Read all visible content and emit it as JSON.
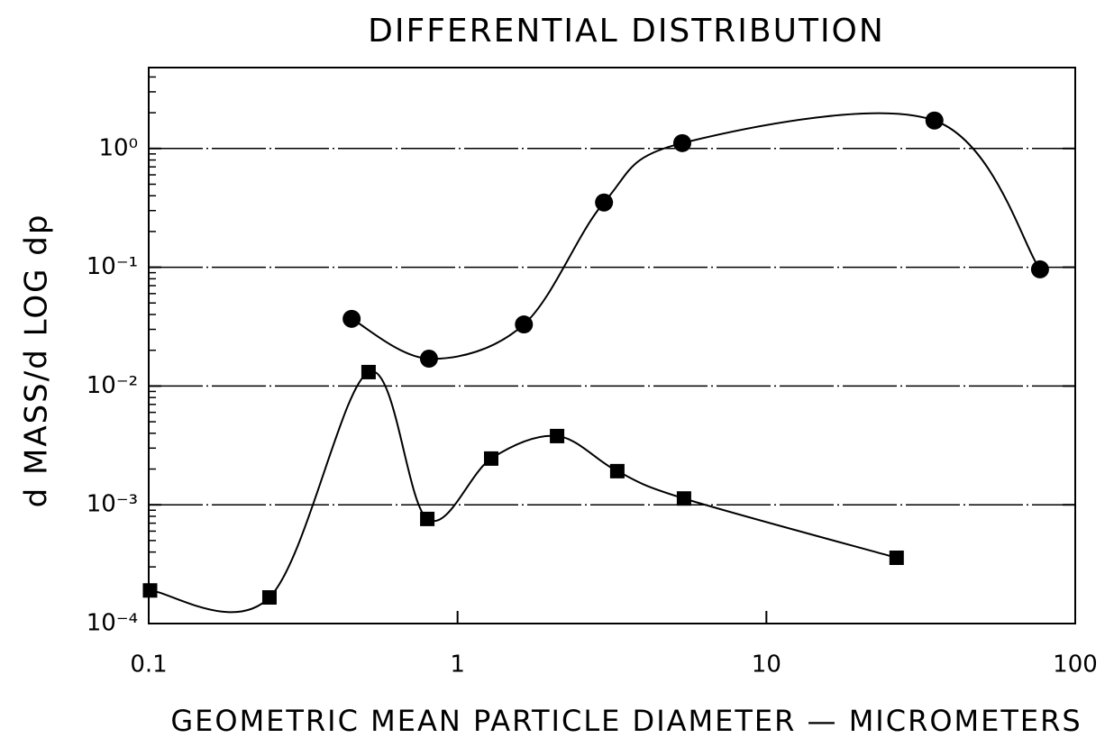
{
  "chart_data": {
    "type": "scatter",
    "title": "DIFFERENTIAL DISTRIBUTION",
    "x_label": "GEOMETRIC MEAN PARTICLE DIAMETER — MICROMETERS",
    "y_label": "d MASS/d LOG dp",
    "xscale": "log",
    "yscale": "log",
    "grid": true,
    "xlim": [
      0.1,
      100
    ],
    "ylim": [
      0.0001,
      4.8
    ],
    "xticks": [
      0.1,
      1,
      10,
      100
    ],
    "yticks": [
      {
        "value": 0.0001,
        "label": "10⁻⁴"
      },
      {
        "value": 0.001,
        "label": "10⁻³"
      },
      {
        "value": 0.01,
        "label": "10⁻²"
      },
      {
        "value": 0.1,
        "label": "10⁻¹"
      },
      {
        "value": 1,
        "label": "10⁰"
      }
    ],
    "series": [
      {
        "color": "#000000",
        "marker": "circle",
        "x": [
          0.454,
          0.808,
          1.64,
          2.98,
          5.34,
          35.0,
          76.9
        ],
        "values": [
          0.0368,
          0.017,
          0.033,
          0.351,
          1.11,
          1.72,
          0.096
        ]
      },
      {
        "color": "#000000",
        "marker": "square",
        "x": [
          0.101,
          0.246,
          0.515,
          0.798,
          1.285,
          2.1,
          3.29,
          5.41,
          26.4
        ],
        "values": [
          0.00019,
          0.000166,
          0.0131,
          0.00076,
          0.00245,
          0.00379,
          0.00192,
          0.00113,
          0.000358
        ]
      }
    ]
  }
}
